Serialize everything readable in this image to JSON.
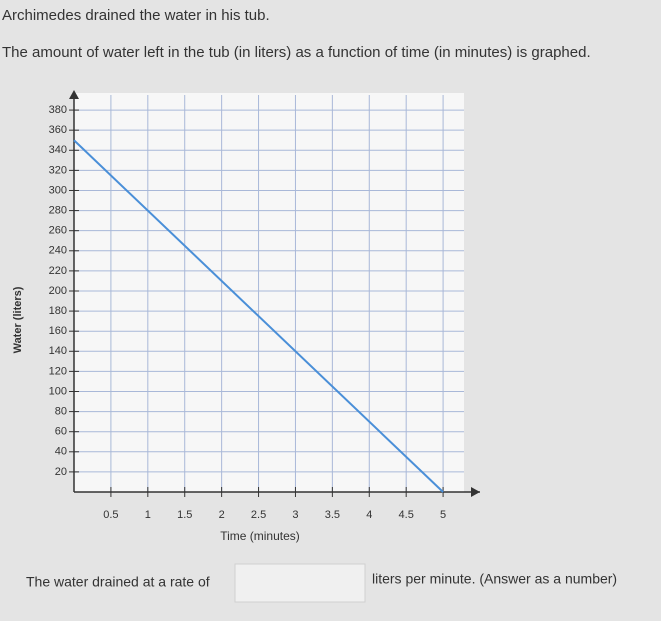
{
  "chart_data": {
    "type": "line",
    "title": "Archimedes drained the water in his tub.",
    "subtitle": "The amount of water left in the tub (in liters) as a function of time (in minutes) is graphed.",
    "x_label": "Time (minutes)",
    "y_label": "Water (liters)",
    "x": [
      0,
      5
    ],
    "series": [
      {
        "name": "Water",
        "color": "#4a8fd8",
        "values": [
          350,
          0
        ]
      }
    ],
    "xlim": [
      0,
      5.5
    ],
    "xticks": [
      0.5,
      1,
      1.5,
      2,
      2.5,
      3,
      3.5,
      4,
      4.5,
      5
    ],
    "ylim": [
      0,
      395
    ],
    "yticks": [
      20,
      40,
      60,
      80,
      100,
      120,
      140,
      160,
      180,
      200,
      220,
      240,
      260,
      280,
      300,
      320,
      340,
      360,
      380
    ],
    "grid": true
  },
  "question": {
    "prefix": "The water drained at a rate of",
    "suffix": "liters per minute. (Answer as a number)"
  }
}
